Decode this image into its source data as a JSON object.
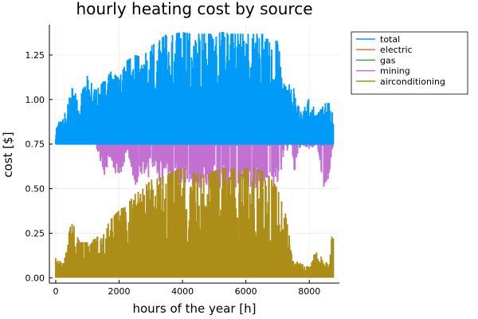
{
  "chart_data": {
    "type": "area",
    "title": "hourly heating cost by source",
    "xlabel": "hours of the year [h]",
    "ylabel": "cost [$]",
    "xlim": [
      -200,
      8950
    ],
    "ylim": [
      -0.03,
      1.42
    ],
    "x_ticks": [
      0,
      2000,
      4000,
      6000,
      8000
    ],
    "y_ticks": [
      0.0,
      0.25,
      0.5,
      0.75,
      1.0,
      1.25
    ],
    "x_tick_labels": [
      "0",
      "2000",
      "4000",
      "6000",
      "8000"
    ],
    "y_tick_labels": [
      "0.00",
      "0.25",
      "0.50",
      "0.75",
      "1.00",
      "1.25"
    ],
    "grid": true,
    "legend_position": "outside-top-right",
    "series": [
      {
        "name": "total",
        "color": "#009af9",
        "x": [
          0,
          250,
          500,
          750,
          1000,
          1250,
          1500,
          1750,
          2000,
          2250,
          2500,
          2750,
          3000,
          3250,
          3500,
          3750,
          4000,
          4250,
          4500,
          4750,
          5000,
          5250,
          5500,
          5750,
          6000,
          6250,
          6500,
          6750,
          7000,
          7250,
          7500,
          7750,
          8000,
          8250,
          8500,
          8760
        ],
        "values": [
          0.86,
          0.9,
          1.07,
          1.0,
          1.14,
          1.05,
          1.1,
          1.16,
          1.12,
          1.22,
          1.25,
          1.24,
          1.3,
          1.33,
          1.37,
          1.37,
          1.38,
          1.37,
          1.37,
          1.37,
          1.37,
          1.38,
          1.37,
          1.37,
          1.37,
          1.37,
          1.37,
          1.33,
          1.33,
          1.1,
          1.07,
          0.92,
          1.01,
          0.92,
          0.98,
          0.98
        ]
      },
      {
        "name": "electric",
        "color": "#e26f46",
        "x": [],
        "values": []
      },
      {
        "name": "gas",
        "color": "#3da44d",
        "x": [],
        "values": []
      },
      {
        "name": "mining",
        "color": "#c271d2",
        "x": [
          0,
          250,
          500,
          750,
          1000,
          1250,
          1500,
          1750,
          2000,
          2250,
          2500,
          2750,
          3000,
          3250,
          3500,
          3750,
          4000,
          4250,
          4500,
          4750,
          5000,
          5250,
          5500,
          5750,
          6000,
          6250,
          6500,
          6750,
          7000,
          7250,
          7500,
          7750,
          8000,
          8250,
          8500,
          8760
        ],
        "values": [
          0.75,
          0.75,
          0.75,
          0.75,
          0.75,
          0.75,
          0.55,
          0.65,
          0.52,
          0.7,
          0.5,
          0.58,
          0.55,
          0.52,
          0.5,
          0.5,
          0.48,
          0.5,
          0.5,
          0.5,
          0.5,
          0.5,
          0.5,
          0.5,
          0.5,
          0.5,
          0.5,
          0.5,
          0.47,
          0.75,
          0.55,
          0.75,
          0.72,
          0.75,
          0.42,
          0.75
        ]
      },
      {
        "name": "airconditioning",
        "color": "#ac8d18",
        "x": [
          0,
          250,
          500,
          750,
          1000,
          1250,
          1500,
          1750,
          2000,
          2250,
          2500,
          2750,
          3000,
          3250,
          3500,
          3750,
          4000,
          4250,
          4500,
          4750,
          5000,
          5250,
          5500,
          5750,
          6000,
          6250,
          6500,
          6750,
          7000,
          7250,
          7500,
          7750,
          8000,
          8250,
          8500,
          8760
        ],
        "values": [
          0.11,
          0.08,
          0.33,
          0.2,
          0.2,
          0.22,
          0.26,
          0.33,
          0.38,
          0.41,
          0.47,
          0.5,
          0.55,
          0.56,
          0.58,
          0.6,
          0.62,
          0.6,
          0.58,
          0.58,
          0.6,
          0.62,
          0.62,
          0.61,
          0.62,
          0.62,
          0.6,
          0.57,
          0.5,
          0.36,
          0.1,
          0.08,
          0.06,
          0.18,
          0.06,
          0.27
        ]
      }
    ]
  }
}
